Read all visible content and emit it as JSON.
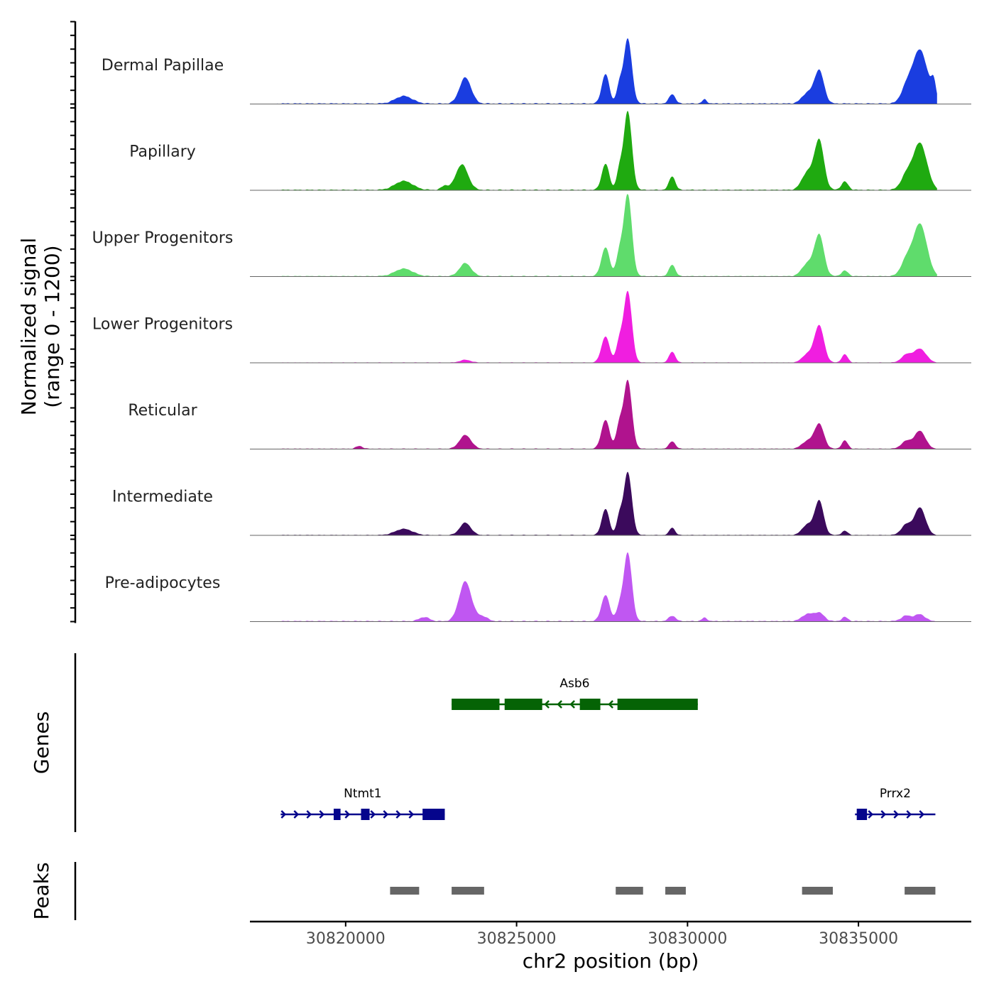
{
  "chart_data": {
    "type": "area",
    "title": "",
    "xlabel": "chr2 position (bp)",
    "ylabel_line1": "Normalized signal",
    "ylabel_line2": "(range 0 - 1200)",
    "ylim": [
      0,
      1200
    ],
    "xlim": [
      30817200,
      30838300
    ],
    "x_ticks": [
      30820000,
      30825000,
      30830000,
      30835000
    ],
    "x_tick_labels": [
      "30820000",
      "30825000",
      "30830000",
      "30835000"
    ],
    "tracks": [
      {
        "name": "Dermal Papillae",
        "color": "#1a3de0",
        "peaks": [
          [
            30821700,
            110,
            250
          ],
          [
            30823500,
            380,
            170
          ],
          [
            30827600,
            430,
            110
          ],
          [
            30828000,
            240,
            80
          ],
          [
            30828250,
            950,
            120
          ],
          [
            30829550,
            140,
            90
          ],
          [
            30830500,
            60,
            70
          ],
          [
            30833500,
            150,
            160
          ],
          [
            30833850,
            480,
            140
          ],
          [
            30836400,
            200,
            160
          ],
          [
            30836800,
            780,
            220
          ],
          [
            30837200,
            250,
            70
          ]
        ],
        "base": 15
      },
      {
        "name": "Papillary",
        "color": "#1faa10",
        "peaks": [
          [
            30821700,
            130,
            260
          ],
          [
            30822900,
            60,
            100
          ],
          [
            30823400,
            370,
            180
          ],
          [
            30827600,
            380,
            110
          ],
          [
            30828000,
            250,
            80
          ],
          [
            30828250,
            1150,
            120
          ],
          [
            30829550,
            200,
            90
          ],
          [
            30833500,
            250,
            160
          ],
          [
            30833850,
            720,
            140
          ],
          [
            30834600,
            120,
            100
          ],
          [
            30836400,
            200,
            160
          ],
          [
            30836800,
            680,
            200
          ]
        ],
        "base": 14
      },
      {
        "name": "Upper Progenitors",
        "color": "#5fdc6c",
        "peaks": [
          [
            30821700,
            110,
            260
          ],
          [
            30823500,
            190,
            170
          ],
          [
            30827600,
            420,
            120
          ],
          [
            30828000,
            300,
            90
          ],
          [
            30828250,
            1200,
            120
          ],
          [
            30829550,
            170,
            90
          ],
          [
            30833500,
            180,
            160
          ],
          [
            30833850,
            600,
            140
          ],
          [
            30834600,
            80,
            100
          ],
          [
            30836400,
            220,
            160
          ],
          [
            30836800,
            760,
            200
          ]
        ],
        "base": 12
      },
      {
        "name": "Lower Progenitors",
        "color": "#f01ee0",
        "peaks": [
          [
            30823500,
            40,
            160
          ],
          [
            30827600,
            380,
            120
          ],
          [
            30828000,
            280,
            90
          ],
          [
            30828250,
            1040,
            120
          ],
          [
            30829550,
            160,
            90
          ],
          [
            30833500,
            120,
            150
          ],
          [
            30833850,
            540,
            140
          ],
          [
            30834600,
            120,
            90
          ],
          [
            30836400,
            110,
            150
          ],
          [
            30836800,
            200,
            180
          ]
        ],
        "base": 8
      },
      {
        "name": "Reticular",
        "color": "#b0138e",
        "peaks": [
          [
            30820400,
            40,
            100
          ],
          [
            30823500,
            200,
            170
          ],
          [
            30827600,
            420,
            120
          ],
          [
            30828000,
            320,
            90
          ],
          [
            30828250,
            1000,
            120
          ],
          [
            30829550,
            110,
            90
          ],
          [
            30833500,
            110,
            160
          ],
          [
            30833850,
            360,
            140
          ],
          [
            30834600,
            120,
            90
          ],
          [
            30836400,
            110,
            150
          ],
          [
            30836800,
            260,
            160
          ]
        ],
        "base": 10
      },
      {
        "name": "Intermediate",
        "color": "#3b0a5c",
        "peaks": [
          [
            30821700,
            90,
            250
          ],
          [
            30823500,
            180,
            160
          ],
          [
            30827600,
            380,
            110
          ],
          [
            30828000,
            240,
            80
          ],
          [
            30828250,
            920,
            120
          ],
          [
            30829550,
            110,
            80
          ],
          [
            30833500,
            150,
            150
          ],
          [
            30833850,
            500,
            130
          ],
          [
            30834600,
            60,
            90
          ],
          [
            30836400,
            150,
            150
          ],
          [
            30836800,
            400,
            160
          ]
        ],
        "base": 10
      },
      {
        "name": "Pre-adipocytes",
        "color": "#c057f2",
        "peaks": [
          [
            30822300,
            60,
            150
          ],
          [
            30823500,
            580,
            180
          ],
          [
            30824000,
            70,
            150
          ],
          [
            30827600,
            380,
            120
          ],
          [
            30828000,
            180,
            90
          ],
          [
            30828250,
            1000,
            120
          ],
          [
            30829550,
            80,
            100
          ],
          [
            30830500,
            50,
            80
          ],
          [
            30833500,
            100,
            160
          ],
          [
            30833850,
            120,
            150
          ],
          [
            30834600,
            60,
            90
          ],
          [
            30836400,
            80,
            150
          ],
          [
            30836800,
            100,
            150
          ]
        ],
        "base": 14
      }
    ],
    "genes": [
      {
        "name": "Asb6",
        "strand": "-",
        "color": "#056305",
        "row": 0,
        "start": 30823100,
        "end": 30830300,
        "exons": [
          [
            30823100,
            30824500
          ],
          [
            30824650,
            30825750
          ],
          [
            30826850,
            30827450
          ],
          [
            30827950,
            30830300
          ]
        ]
      },
      {
        "name": "Ntmt1",
        "strand": "+",
        "color": "#05058c",
        "row": 1,
        "start": 30818100,
        "end": 30822900,
        "exons": [
          [
            30819650,
            30819850
          ],
          [
            30820450,
            30820700
          ],
          [
            30822250,
            30822900
          ]
        ]
      },
      {
        "name": "Prrx2",
        "strand": "+",
        "color": "#05058c",
        "row": 1,
        "start": 30834900,
        "end": 30837250,
        "exons": [
          [
            30834950,
            30835250
          ]
        ]
      }
    ],
    "peak_regions": [
      [
        30821300,
        30822150
      ],
      [
        30823100,
        30824050
      ],
      [
        30827900,
        30828700
      ],
      [
        30829350,
        30829950
      ],
      [
        30833350,
        30834250
      ],
      [
        30836350,
        30837250
      ]
    ],
    "panel_labels": {
      "genes": "Genes",
      "peaks": "Peaks"
    },
    "colors": {
      "peak_region": "#666666",
      "baseline": "#666666",
      "axis": "#000000"
    }
  }
}
